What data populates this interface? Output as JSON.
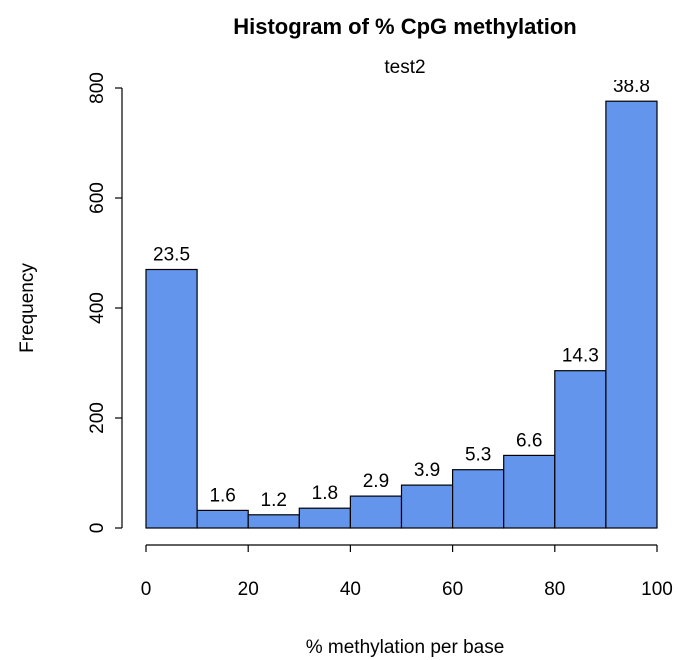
{
  "chart_data": {
    "type": "histogram",
    "title": "Histogram of % CpG methylation",
    "subtitle": "test2",
    "x_label": "% methylation per base",
    "y_label": "Frequency",
    "bins": [
      0,
      10,
      20,
      30,
      40,
      50,
      60,
      70,
      80,
      90,
      100
    ],
    "values": [
      470,
      32,
      24,
      36,
      58,
      78,
      106,
      132,
      286,
      776
    ],
    "percentages": [
      23.5,
      1.6,
      1.2,
      1.8,
      2.9,
      3.9,
      5.3,
      6.6,
      14.3,
      38.8
    ],
    "color": "#6495ed",
    "xlim": [
      0,
      100
    ],
    "xticks": [
      0,
      20,
      40,
      60,
      80,
      100
    ],
    "ylim": [
      0,
      800
    ],
    "yticks": [
      0,
      200,
      400,
      600,
      800
    ]
  }
}
